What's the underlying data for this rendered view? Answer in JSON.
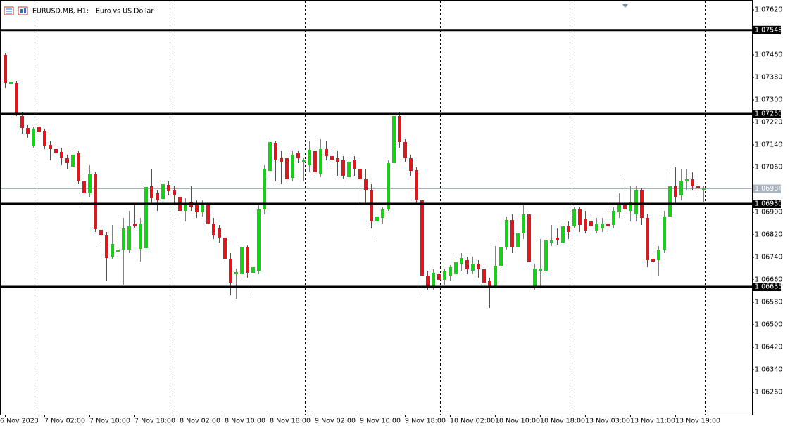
{
  "chart_data": {
    "type": "candlestick",
    "symbol": "EURUSD.MB, H1:",
    "description": "Euro vs US Dollar",
    "up_color": "#0fd40f",
    "down_color": "#e3141a",
    "categories": [
      "6 Nov 2023",
      null,
      null,
      null,
      null,
      null,
      null,
      "7 Nov 02:00",
      null,
      null,
      null,
      null,
      null,
      null,
      null,
      "7 Nov 10:00",
      null,
      null,
      null,
      null,
      null,
      null,
      null,
      "7 Nov 18:00",
      null,
      null,
      null,
      null,
      null,
      null,
      null,
      "8 Nov 02:00",
      null,
      null,
      null,
      null,
      null,
      null,
      null,
      "8 Nov 10:00",
      null,
      null,
      null,
      null,
      null,
      null,
      null,
      "8 Nov 18:00",
      null,
      null,
      null,
      null,
      null,
      null,
      null,
      "9 Nov 02:00",
      null,
      null,
      null,
      null,
      null,
      null,
      null,
      "9 Nov 10:00",
      null,
      null,
      null,
      null,
      null,
      null,
      null,
      "9 Nov 18:00",
      null,
      null,
      null,
      null,
      null,
      null,
      null,
      "10 Nov 02:00",
      null,
      null,
      null,
      null,
      null,
      null,
      null,
      "10 Nov 10:00",
      null,
      null,
      null,
      null,
      null,
      null,
      null,
      "10 Nov 18:00",
      null,
      null,
      null,
      null,
      null,
      null,
      null,
      "13 Nov 03:00",
      null,
      null,
      null,
      null,
      null,
      null,
      null,
      "13 Nov 11:00",
      null,
      null,
      null,
      null,
      null,
      null,
      null,
      "13 Nov 19:00",
      null,
      null,
      null,
      null,
      null
    ],
    "open": [
      1.0746,
      1.073575,
      1.0736,
      1.072425,
      1.072,
      1.07135,
      1.07205,
      1.0719,
      1.0714,
      1.07125,
      1.07115,
      1.070925,
      1.070625,
      1.0711,
      1.0701,
      1.069675,
      1.07035,
      1.068375,
      1.068175,
      1.067425,
      1.0676,
      1.067675,
      1.067675,
      1.0686,
      1.0677,
      1.067725,
      1.069925,
      1.069675,
      1.069475,
      1.069975,
      1.0698,
      1.06955,
      1.06905,
      1.06935,
      1.06925,
      1.069,
      1.06925,
      1.0686,
      1.068425,
      1.0681,
      1.06735,
      1.0668,
      1.0668,
      1.06775,
      1.06685,
      1.066925,
      1.0691,
      1.070475,
      1.071475,
      1.070925,
      1.070925,
      1.070225,
      1.0711,
      1.0708,
      1.070675,
      1.071175,
      1.07035,
      1.07125,
      1.071,
      1.070925,
      1.07085,
      1.07025,
      1.07085,
      1.07055,
      1.070175,
      1.0698,
      1.068675,
      1.0688,
      1.0691,
      1.07075,
      1.072425,
      1.0715,
      1.070925,
      1.0705,
      1.069425,
      1.06675,
      1.06635,
      1.0668,
      1.0666,
      1.06675,
      1.0668,
      1.067175,
      1.0673,
      1.066925,
      1.06715,
      1.066975,
      1.06655,
      1.06635,
      1.0671,
      1.06775,
      1.068725,
      1.06775,
      1.06825,
      1.068925,
      1.06635,
      1.066925,
      1.066925,
      1.067925,
      1.0681,
      1.067925,
      1.0685,
      1.0685,
      1.0691,
      1.06875,
      1.068675,
      1.06835,
      1.068425,
      1.0686,
      1.06855,
      1.069,
      1.06925,
      1.06905,
      1.068925,
      1.0698,
      1.0688,
      1.06735,
      1.0673,
      1.067675,
      1.06885,
      1.069925,
      1.0696,
      1.0701,
      1.070175,
      1.069925,
      1.0698
    ],
    "high": [
      1.074675,
      1.073725,
      1.073675,
      1.07255,
      1.0721,
      1.07205,
      1.07225,
      1.071975,
      1.07155,
      1.071425,
      1.0713,
      1.07105,
      1.071175,
      1.071175,
      1.0703,
      1.070675,
      1.070425,
      1.06975,
      1.0683,
      1.06855,
      1.06805,
      1.0688,
      1.06905,
      1.0693,
      1.0688,
      1.07,
      1.07055,
      1.0698,
      1.0701,
      1.070125,
      1.069925,
      1.06975,
      1.0695,
      1.069925,
      1.069425,
      1.069425,
      1.06935,
      1.0688,
      1.06855,
      1.068225,
      1.06755,
      1.067,
      1.0678,
      1.067825,
      1.0673,
      1.06925,
      1.070675,
      1.071625,
      1.07155,
      1.071175,
      1.07105,
      1.071175,
      1.071175,
      1.070925,
      1.07155,
      1.0713,
      1.0716,
      1.07155,
      1.07125,
      1.071175,
      1.071,
      1.070925,
      1.071,
      1.0708,
      1.07055,
      1.07,
      1.069175,
      1.069175,
      1.07085,
      1.07255,
      1.07255,
      1.0716,
      1.07105,
      1.0706,
      1.06955,
      1.066925,
      1.066975,
      1.066925,
      1.067,
      1.067125,
      1.067425,
      1.06755,
      1.067425,
      1.067425,
      1.0673,
      1.0671,
      1.066675,
      1.0678,
      1.06805,
      1.06885,
      1.068925,
      1.0688,
      1.06925,
      1.06905,
      1.067175,
      1.06805,
      1.0681,
      1.06855,
      1.068425,
      1.068675,
      1.068675,
      1.069175,
      1.069175,
      1.06905,
      1.068925,
      1.0688,
      1.0688,
      1.06905,
      1.069175,
      1.069675,
      1.070175,
      1.069925,
      1.069925,
      1.06985,
      1.068925,
      1.067425,
      1.0678,
      1.06905,
      1.070425,
      1.0706,
      1.07055,
      1.07055,
      1.070425,
      1.07,
      1.069925
    ],
    "low": [
      1.073425,
      1.07335,
      1.072425,
      1.0718,
      1.07165,
      1.0713,
      1.071675,
      1.07125,
      1.07085,
      1.07075,
      1.070675,
      1.07055,
      1.0705,
      1.07,
      1.069175,
      1.06955,
      1.0683,
      1.067925,
      1.06655,
      1.06735,
      1.067425,
      1.066425,
      1.06755,
      1.068425,
      1.06725,
      1.0676,
      1.0693,
      1.06905,
      1.0693,
      1.0696,
      1.0693,
      1.068925,
      1.068675,
      1.06905,
      1.0688,
      1.06885,
      1.0685,
      1.06805,
      1.067925,
      1.06725,
      1.06605,
      1.065925,
      1.0666,
      1.066675,
      1.06605,
      1.0668,
      1.068925,
      1.0703,
      1.0701,
      1.07,
      1.07005,
      1.0701,
      1.07075,
      1.0701,
      1.070425,
      1.0703,
      1.07025,
      1.07085,
      1.070675,
      1.0703,
      1.070175,
      1.0701,
      1.0703,
      1.0693,
      1.0693,
      1.068425,
      1.06805,
      1.0686,
      1.06905,
      1.0706,
      1.0713,
      1.0708,
      1.0703,
      1.0693,
      1.06605,
      1.06625,
      1.06625,
      1.06635,
      1.066425,
      1.06655,
      1.066675,
      1.066925,
      1.0668,
      1.0668,
      1.066675,
      1.066425,
      1.0656,
      1.0663,
      1.066925,
      1.067675,
      1.06755,
      1.067675,
      1.06805,
      1.06705,
      1.06625,
      1.0663,
      1.06635,
      1.0678,
      1.06785,
      1.0678,
      1.06805,
      1.068425,
      1.0683,
      1.06825,
      1.068175,
      1.06825,
      1.0683,
      1.0683,
      1.068425,
      1.0688,
      1.0688,
      1.068675,
      1.068675,
      1.06855,
      1.06705,
      1.06655,
      1.06675,
      1.06755,
      1.06855,
      1.0693,
      1.069425,
      1.0698,
      1.0698,
      1.069675,
      1.06935
    ],
    "close": [
      1.0736,
      1.07365,
      1.0725,
      1.072,
      1.0718,
      1.071975,
      1.07185,
      1.07135,
      1.07125,
      1.0711,
      1.070925,
      1.07075,
      1.07105,
      1.0701,
      1.069675,
      1.070375,
      1.0684,
      1.068175,
      1.067375,
      1.067875,
      1.067675,
      1.068425,
      1.0685,
      1.0685,
      1.0686,
      1.0699,
      1.0695,
      1.069425,
      1.07,
      1.06975,
      1.0696,
      1.06905,
      1.0693,
      1.069175,
      1.069,
      1.06925,
      1.0686,
      1.068175,
      1.0681,
      1.06735,
      1.0665,
      1.066875,
      1.06775,
      1.06685,
      1.06705,
      1.0691,
      1.07055,
      1.0715,
      1.07085,
      1.0708,
      1.070175,
      1.07105,
      1.070925,
      1.07085,
      1.071225,
      1.070425,
      1.07125,
      1.071,
      1.07085,
      1.0708,
      1.0703,
      1.0708,
      1.07055,
      1.070175,
      1.0698,
      1.068675,
      1.06885,
      1.0691,
      1.07075,
      1.072425,
      1.0715,
      1.070925,
      1.070475,
      1.069425,
      1.06675,
      1.06635,
      1.06685,
      1.0666,
      1.066925,
      1.06705,
      1.067225,
      1.067375,
      1.066975,
      1.067175,
      1.066975,
      1.0665,
      1.06635,
      1.0671,
      1.06775,
      1.068725,
      1.06775,
      1.06825,
      1.068925,
      1.06725,
      1.067,
      1.067,
      1.068,
      1.068,
      1.068,
      1.0685,
      1.0683,
      1.0691,
      1.06855,
      1.06835,
      1.0685,
      1.0686,
      1.0686,
      1.0685,
      1.06905,
      1.0693,
      1.0691,
      1.06935,
      1.0698,
      1.0688,
      1.0673,
      1.06725,
      1.067675,
      1.06885,
      1.069925,
      1.06955,
      1.070125,
      1.070175,
      1.069925,
      1.06985,
      1.06984
    ],
    "levels": [
      1.07548,
      {
        "value": 1.0725,
        "label": "1.07250"
      },
      {
        "value": 1.0693,
        "label": "1.06930"
      },
      1.06635
    ],
    "bid": 1.06984,
    "ylim": [
      1.0618,
      1.07655
    ],
    "yticks": [
      {
        "value": 1.0762,
        "label": "1.07620"
      },
      {
        "value": 1.0746,
        "label": "1.07460"
      },
      {
        "value": 1.0738,
        "label": "1.07380"
      },
      {
        "value": 1.073,
        "label": "1.07300"
      },
      {
        "value": 1.0722,
        "label": "1.07220"
      },
      {
        "value": 1.0714,
        "label": "1.07140"
      },
      {
        "value": 1.0706,
        "label": "1.07060"
      },
      {
        "value": 1.069,
        "label": "1.06900"
      },
      {
        "value": 1.0682,
        "label": "1.06820"
      },
      {
        "value": 1.0674,
        "label": "1.06740"
      },
      {
        "value": 1.0666,
        "label": "1.06660"
      },
      {
        "value": 1.0658,
        "label": "1.06580"
      },
      {
        "value": 1.065,
        "label": "1.06500"
      },
      {
        "value": 1.0642,
        "label": "1.06420"
      },
      {
        "value": 1.0634,
        "label": "1.06340"
      },
      {
        "value": 1.0626,
        "label": "1.06260"
      }
    ]
  }
}
